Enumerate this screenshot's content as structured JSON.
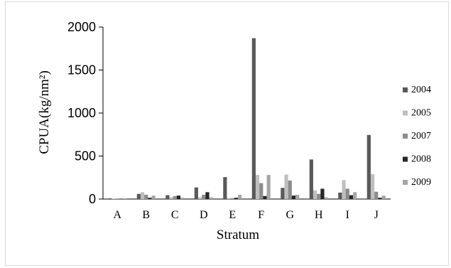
{
  "chart_data": {
    "type": "bar",
    "title": "",
    "xlabel": "Stratum",
    "ylabel": "CPUA(kg/nm²)",
    "categories": [
      "A",
      "B",
      "C",
      "D",
      "E",
      "F",
      "G",
      "H",
      "I",
      "J"
    ],
    "y_ticks": [
      "0",
      "500",
      "1000",
      "1500",
      "2000"
    ],
    "ylim": [
      0,
      2000
    ],
    "grid": false,
    "legend_position": "right",
    "series": [
      {
        "name": "2004",
        "color": "#595959",
        "values": [
          8,
          60,
          45,
          135,
          255,
          1870,
          130,
          460,
          75,
          745
        ]
      },
      {
        "name": "2005",
        "color": "#bfbfbf",
        "values": [
          5,
          80,
          20,
          20,
          10,
          280,
          285,
          100,
          220,
          290
        ]
      },
      {
        "name": "2007",
        "color": "#8c8c8c",
        "values": [
          3,
          50,
          35,
          50,
          10,
          185,
          215,
          60,
          120,
          85
        ]
      },
      {
        "name": "2008",
        "color": "#262626",
        "values": [
          2,
          15,
          40,
          80,
          15,
          35,
          40,
          120,
          45,
          15
        ]
      },
      {
        "name": "2009",
        "color": "#a6a6a6",
        "values": [
          2,
          40,
          15,
          20,
          50,
          280,
          50,
          20,
          80,
          40
        ]
      }
    ]
  }
}
